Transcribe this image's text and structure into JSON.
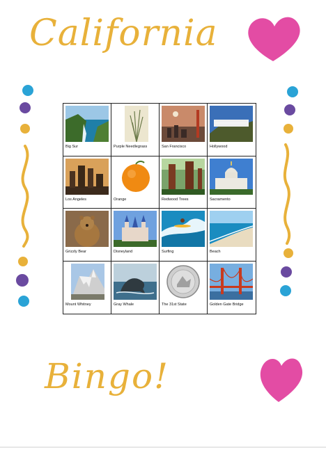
{
  "header": {
    "title": "California",
    "subtitle": "Bingo!"
  },
  "bingo": {
    "cells": [
      {
        "label": "Big Sur",
        "icon": "big-sur-photo-icon"
      },
      {
        "label": "Purple Needlegrass",
        "icon": "needlegrass-photo-icon"
      },
      {
        "label": "San Francisco",
        "icon": "san-francisco-photo-icon"
      },
      {
        "label": "Hollywood",
        "icon": "hollywood-sign-photo-icon"
      },
      {
        "label": "Los Angeles",
        "icon": "los-angeles-photo-icon"
      },
      {
        "label": "Orange",
        "icon": "orange-photo-icon"
      },
      {
        "label": "Redwood Trees",
        "icon": "redwood-trees-photo-icon"
      },
      {
        "label": "Sacramento",
        "icon": "capitol-photo-icon"
      },
      {
        "label": "Grizzly Bear",
        "icon": "grizzly-bear-photo-icon"
      },
      {
        "label": "Disneyland",
        "icon": "disneyland-castle-photo-icon"
      },
      {
        "label": "Surfing",
        "icon": "surfing-photo-icon"
      },
      {
        "label": "Beach",
        "icon": "beach-photo-icon"
      },
      {
        "label": "Mount Whitney",
        "icon": "mountain-photo-icon"
      },
      {
        "label": "Gray Whale",
        "icon": "whale-photo-icon"
      },
      {
        "label": "The 31st State",
        "icon": "quarter-coin-photo-icon"
      },
      {
        "label": "Golden Gate Bridge",
        "icon": "golden-gate-bridge-photo-icon"
      }
    ]
  },
  "colors": {
    "gold": "#e8b13a",
    "pink": "#e0389a",
    "blue": "#2aa3d6",
    "purple": "#6a4aa0"
  }
}
